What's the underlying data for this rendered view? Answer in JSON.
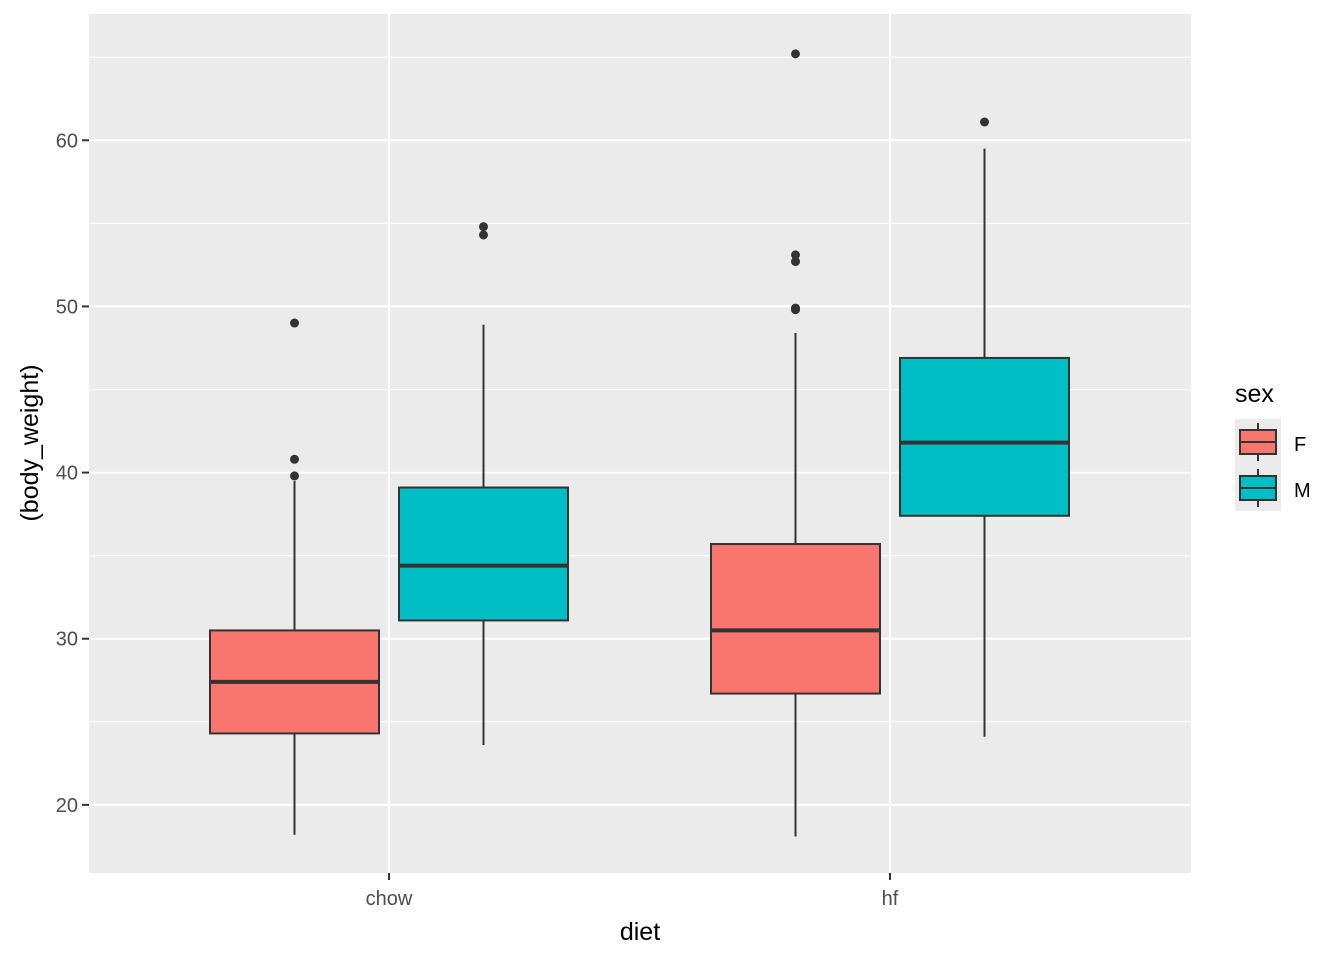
{
  "chart_data": {
    "type": "boxplot",
    "title": "",
    "xlabel": "diet",
    "ylabel": "(body_weight)",
    "categories": [
      "chow",
      "hf"
    ],
    "ylim": [
      15.9,
      67.6
    ],
    "yticks": [
      20,
      30,
      40,
      50,
      60
    ],
    "grid": true,
    "legend": {
      "title": "sex",
      "placement": "right",
      "entries": [
        {
          "name": "F",
          "color": "#F8766D"
        },
        {
          "name": "M",
          "color": "#00BFC4"
        }
      ]
    },
    "series": [
      {
        "name": "F",
        "color": "#F8766D",
        "boxes": [
          {
            "category": "chow",
            "lower_whisker": 18.2,
            "q1": 24.3,
            "median": 27.4,
            "q3": 30.5,
            "upper_whisker": 39.5,
            "outliers": [
              39.8,
              40.8,
              49.0
            ]
          },
          {
            "category": "hf",
            "lower_whisker": 18.1,
            "q1": 26.7,
            "median": 30.5,
            "q3": 35.7,
            "upper_whisker": 48.4,
            "outliers": [
              49.8,
              49.9,
              52.7,
              53.1,
              65.2
            ]
          }
        ]
      },
      {
        "name": "M",
        "color": "#00BFC4",
        "boxes": [
          {
            "category": "chow",
            "lower_whisker": 23.6,
            "q1": 31.1,
            "median": 34.4,
            "q3": 39.1,
            "upper_whisker": 48.9,
            "outliers": [
              54.3,
              54.8
            ]
          },
          {
            "category": "hf",
            "lower_whisker": 24.1,
            "q1": 37.4,
            "median": 41.8,
            "q3": 46.9,
            "upper_whisker": 59.5,
            "outliers": [
              61.1
            ]
          }
        ]
      }
    ]
  }
}
